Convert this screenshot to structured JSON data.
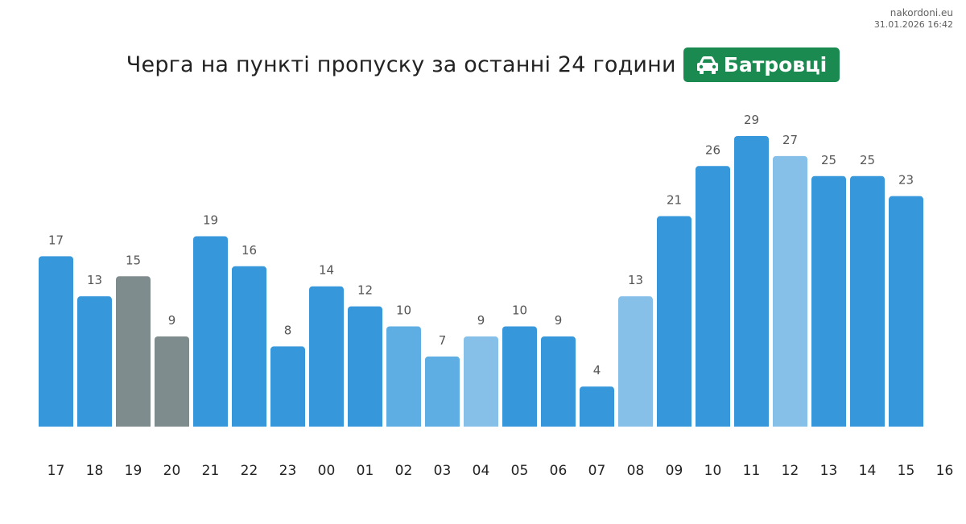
{
  "site": {
    "name": "nakordoni.eu",
    "timestamp": "31.01.2026 16:42"
  },
  "header": {
    "title": "Черга на пункті пропуску за останні 24 години",
    "station": "Батровці",
    "station_icon": "car-icon",
    "station_color": "#1a8a50"
  },
  "colors": {
    "blue": "#3797db",
    "medium_blue": "#5eaee3",
    "light_blue": "#86c0e9",
    "gray": "#7f8c8d",
    "value_label": "#555555",
    "tick_label": "#222222"
  },
  "chart_data": {
    "type": "bar",
    "title": "Черга на пункті пропуску за останні 24 години",
    "categories": [
      "17",
      "18",
      "19",
      "20",
      "21",
      "22",
      "23",
      "00",
      "01",
      "02",
      "03",
      "04",
      "05",
      "06",
      "07",
      "08",
      "09",
      "10",
      "11",
      "12",
      "13",
      "14",
      "15"
    ],
    "x_ticks": [
      "17",
      "18",
      "19",
      "20",
      "21",
      "22",
      "23",
      "00",
      "01",
      "02",
      "03",
      "04",
      "05",
      "06",
      "07",
      "08",
      "09",
      "10",
      "11",
      "12",
      "13",
      "14",
      "15",
      "16"
    ],
    "values": [
      17,
      13,
      15,
      9,
      19,
      16,
      8,
      14,
      12,
      10,
      7,
      9,
      10,
      9,
      4,
      13,
      21,
      26,
      29,
      27,
      25,
      25,
      23
    ],
    "bar_colors": [
      "#3797db",
      "#3797db",
      "#7f8c8d",
      "#7f8c8d",
      "#3797db",
      "#3797db",
      "#3797db",
      "#3797db",
      "#3797db",
      "#5eaee3",
      "#5eaee3",
      "#86c0e9",
      "#3797db",
      "#3797db",
      "#3797db",
      "#86c0e9",
      "#3797db",
      "#3797db",
      "#3797db",
      "#86c0e9",
      "#3797db",
      "#3797db",
      "#3797db"
    ],
    "xlabel": "",
    "ylabel": "",
    "ylim": [
      0,
      29
    ],
    "grid": false,
    "legend": "none",
    "data_labels": true
  }
}
